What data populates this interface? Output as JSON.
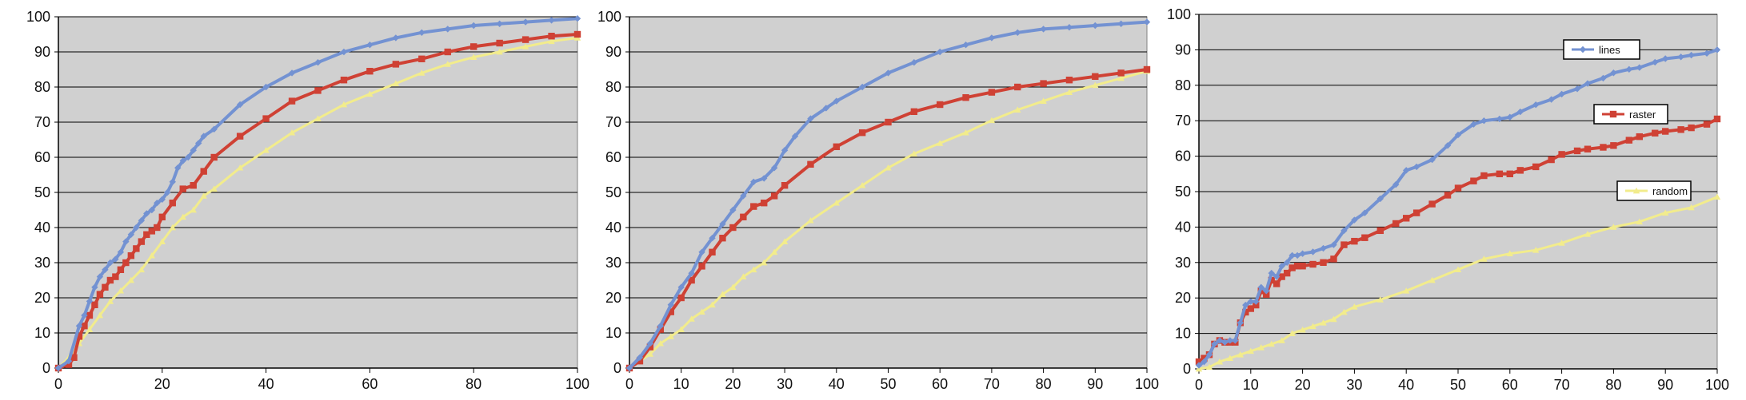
{
  "colors": {
    "plot_background": "#d0d0d0",
    "gridline": "#000000",
    "lines": "#7392d2",
    "raster": "#cf4134",
    "random": "#f2ec8c"
  },
  "chart_data": [
    {
      "type": "line",
      "xlim": [
        0,
        100
      ],
      "ylim": [
        0,
        100
      ],
      "xticks": [
        "0",
        "20",
        "40",
        "60",
        "80",
        "100"
      ],
      "yticks": [
        "0",
        "10",
        "20",
        "30",
        "40",
        "50",
        "60",
        "70",
        "80",
        "90",
        "100"
      ],
      "grid": true,
      "legend": null,
      "series": [
        {
          "key": "lines",
          "marker": "diamond",
          "x": [
            0,
            2,
            4,
            5,
            6,
            7,
            8,
            9,
            10,
            11,
            12,
            13,
            14,
            15,
            16,
            17,
            18,
            19,
            20,
            21,
            22,
            23,
            24,
            25,
            26,
            27,
            28,
            30,
            35,
            40,
            45,
            50,
            55,
            60,
            65,
            70,
            75,
            80,
            85,
            90,
            95,
            100
          ],
          "y": [
            0,
            2,
            12,
            15,
            19,
            23,
            26,
            28,
            30,
            31,
            33,
            36,
            38,
            40,
            42,
            44,
            45,
            47,
            48,
            50,
            53,
            57,
            59,
            60,
            62,
            64,
            66,
            68,
            75,
            80,
            84,
            87,
            90,
            92,
            94,
            95.5,
            96.5,
            97.5,
            98,
            98.5,
            99,
            99.5
          ]
        },
        {
          "key": "raster",
          "marker": "square",
          "x": [
            0,
            2,
            3,
            4,
            5,
            6,
            7,
            8,
            9,
            10,
            11,
            12,
            13,
            14,
            15,
            16,
            17,
            18,
            19,
            20,
            22,
            24,
            26,
            28,
            30,
            35,
            40,
            45,
            50,
            55,
            60,
            65,
            70,
            75,
            80,
            85,
            90,
            95,
            100
          ],
          "y": [
            0,
            1,
            3,
            9,
            12,
            15,
            18,
            21,
            23,
            25,
            26,
            28,
            30,
            32,
            34,
            36,
            38,
            39,
            40,
            43,
            47,
            51,
            52,
            56,
            60,
            66,
            71,
            76,
            79,
            82,
            84.5,
            86.5,
            88,
            90,
            91.5,
            92.5,
            93.5,
            94.5,
            95
          ]
        },
        {
          "key": "random",
          "marker": "triangle",
          "x": [
            0,
            2,
            4,
            6,
            8,
            10,
            12,
            14,
            16,
            18,
            20,
            22,
            24,
            26,
            28,
            30,
            35,
            40,
            45,
            50,
            55,
            60,
            65,
            70,
            75,
            80,
            85,
            90,
            95,
            100
          ],
          "y": [
            0,
            3,
            7,
            11,
            15,
            19,
            22,
            25,
            28,
            32,
            36,
            40,
            43,
            45,
            49,
            51,
            57,
            62,
            67,
            71,
            75,
            78,
            81,
            84,
            86.5,
            88.5,
            90,
            91.5,
            93,
            94
          ]
        }
      ]
    },
    {
      "type": "line",
      "xlim": [
        0,
        100
      ],
      "ylim": [
        0,
        100
      ],
      "xticks": [
        "0",
        "10",
        "20",
        "30",
        "40",
        "50",
        "60",
        "70",
        "80",
        "90",
        "100"
      ],
      "yticks": [
        "0",
        "10",
        "20",
        "30",
        "40",
        "50",
        "60",
        "70",
        "80",
        "90",
        "100"
      ],
      "grid": true,
      "legend": null,
      "series": [
        {
          "key": "lines",
          "marker": "diamond",
          "x": [
            0,
            2,
            4,
            6,
            8,
            10,
            12,
            14,
            16,
            18,
            20,
            22,
            24,
            26,
            28,
            30,
            32,
            35,
            38,
            40,
            45,
            50,
            55,
            60,
            65,
            70,
            75,
            80,
            85,
            90,
            95,
            100
          ],
          "y": [
            0,
            3,
            7,
            12,
            18,
            23,
            27,
            33,
            37,
            41,
            45,
            49,
            53,
            54,
            57,
            62,
            66,
            71,
            74,
            76,
            80,
            84,
            87,
            90,
            92,
            94,
            95.5,
            96.5,
            97,
            97.5,
            98,
            98.5
          ]
        },
        {
          "key": "raster",
          "marker": "square",
          "x": [
            0,
            2,
            4,
            6,
            8,
            10,
            12,
            14,
            16,
            18,
            20,
            22,
            24,
            26,
            28,
            30,
            35,
            40,
            45,
            50,
            55,
            60,
            65,
            70,
            75,
            80,
            85,
            90,
            95,
            100
          ],
          "y": [
            0,
            2,
            6,
            11,
            16,
            20,
            25,
            29,
            33,
            37,
            40,
            43,
            46,
            47,
            49,
            52,
            58,
            63,
            67,
            70,
            73,
            75,
            77,
            78.5,
            80,
            81,
            82,
            83,
            84,
            85
          ]
        },
        {
          "key": "random",
          "marker": "triangle",
          "x": [
            0,
            2,
            4,
            6,
            8,
            10,
            12,
            14,
            16,
            18,
            20,
            22,
            24,
            26,
            28,
            30,
            35,
            40,
            45,
            50,
            55,
            60,
            65,
            70,
            75,
            80,
            85,
            90,
            95,
            100
          ],
          "y": [
            0,
            2,
            4,
            7,
            9,
            11,
            14,
            16,
            18,
            21,
            23,
            26,
            28,
            30,
            33,
            36,
            42,
            47,
            52,
            57,
            61,
            64,
            67,
            70.5,
            73.5,
            76,
            78.5,
            80.5,
            82.5,
            84.5
          ]
        }
      ]
    },
    {
      "type": "line",
      "xlim": [
        0,
        100
      ],
      "ylim": [
        0,
        100
      ],
      "xticks": [
        "0",
        "10",
        "20",
        "30",
        "40",
        "50",
        "60",
        "70",
        "80",
        "90",
        "100"
      ],
      "yticks": [
        "0",
        "10",
        "20",
        "30",
        "40",
        "50",
        "60",
        "70",
        "80",
        "90",
        "100"
      ],
      "grid": true,
      "legend": "right, one box per series",
      "series": [
        {
          "key": "lines",
          "name": "lines",
          "marker": "diamond",
          "x": [
            0,
            1,
            2,
            3,
            4,
            5,
            6,
            7,
            8,
            9,
            10,
            11,
            12,
            13,
            14,
            15,
            16,
            17,
            18,
            19,
            20,
            22,
            24,
            26,
            28,
            30,
            32,
            35,
            38,
            40,
            42,
            45,
            48,
            50,
            53,
            55,
            58,
            60,
            62,
            65,
            68,
            70,
            73,
            75,
            78,
            80,
            83,
            85,
            88,
            90,
            93,
            95,
            98,
            100
          ],
          "y": [
            1,
            2,
            4,
            7,
            8,
            7.5,
            8,
            8,
            13,
            18,
            19,
            19,
            23,
            22,
            27,
            26,
            29,
            30,
            32,
            32,
            32.5,
            33,
            34,
            35,
            39,
            42,
            44,
            48,
            52,
            56,
            57,
            59,
            63,
            66,
            69,
            70,
            70.5,
            71,
            72.5,
            74.5,
            76,
            77.5,
            79,
            80.5,
            82,
            83.5,
            84.5,
            85,
            86.5,
            87.5,
            88,
            88.5,
            89,
            90
          ]
        },
        {
          "key": "raster",
          "name": "raster",
          "marker": "square",
          "x": [
            0,
            1,
            2,
            3,
            4,
            5,
            6,
            7,
            8,
            9,
            10,
            11,
            12,
            13,
            14,
            15,
            16,
            17,
            18,
            19,
            20,
            22,
            24,
            26,
            28,
            30,
            32,
            35,
            38,
            40,
            42,
            45,
            48,
            50,
            53,
            55,
            58,
            60,
            62,
            65,
            68,
            70,
            73,
            75,
            78,
            80,
            83,
            85,
            88,
            90,
            93,
            95,
            98,
            100
          ],
          "y": [
            2,
            3,
            4,
            7,
            8,
            7.5,
            7.5,
            7.5,
            13,
            16,
            17,
            18,
            22,
            21,
            25,
            24,
            26,
            27,
            28.5,
            29,
            29,
            29.5,
            30,
            31,
            35,
            36,
            37,
            39,
            41,
            42.5,
            44,
            46.5,
            49,
            51,
            53,
            54.5,
            55,
            55,
            56,
            57,
            59,
            60.5,
            61.5,
            62,
            62.5,
            63,
            64.5,
            65.5,
            66.5,
            67,
            67.5,
            68,
            69,
            70.5
          ]
        },
        {
          "key": "random",
          "name": "random",
          "marker": "triangle",
          "x": [
            0,
            2,
            4,
            6,
            8,
            10,
            12,
            14,
            16,
            18,
            20,
            22,
            24,
            26,
            28,
            30,
            35,
            40,
            45,
            50,
            55,
            60,
            65,
            70,
            75,
            80,
            85,
            90,
            95,
            100
          ],
          "y": [
            0,
            0.5,
            2,
            3,
            4,
            5,
            6,
            7,
            8,
            10,
            11,
            12,
            13,
            14,
            16,
            17.5,
            19.5,
            22,
            25,
            28,
            31,
            32.5,
            33.5,
            35.5,
            38,
            40,
            41.5,
            44,
            45.5,
            48.5
          ]
        }
      ]
    }
  ]
}
